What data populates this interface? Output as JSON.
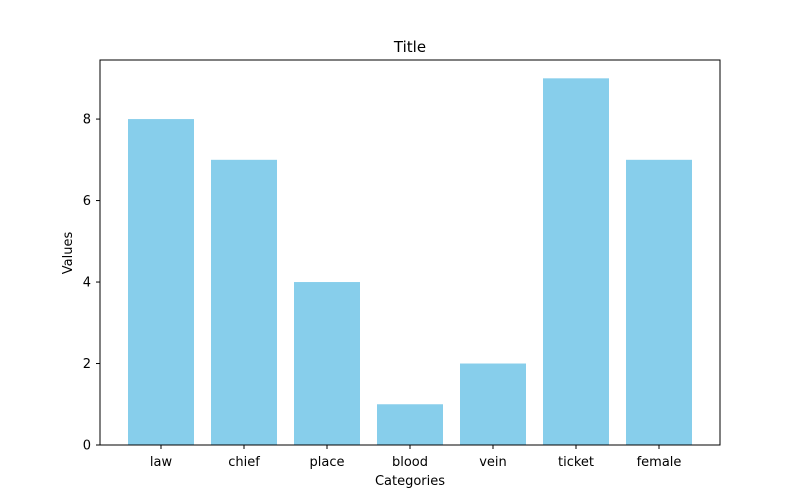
{
  "chart_data": {
    "type": "bar",
    "title": "Title",
    "xlabel": "Categories",
    "ylabel": "Values",
    "categories": [
      "law",
      "chief",
      "place",
      "blood",
      "vein",
      "ticket",
      "female"
    ],
    "values": [
      8,
      7,
      4,
      1,
      2,
      9,
      7
    ],
    "ylim": [
      0,
      9.45
    ],
    "yticks": [
      0,
      2,
      4,
      6,
      8
    ],
    "grid": false,
    "legend": "none",
    "bar_color": "#87CEEB"
  }
}
